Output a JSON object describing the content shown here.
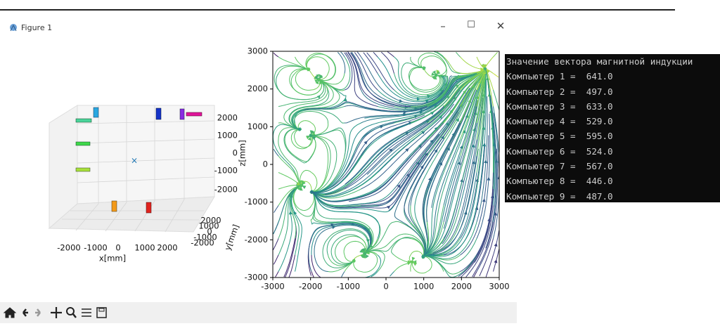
{
  "window": {
    "title": "Figure 1"
  },
  "plot3d": {
    "xticks": [
      -2000,
      -1000,
      0,
      1000,
      2000
    ],
    "xlabel": "x[mm]",
    "yticks": [
      2000,
      1000,
      0,
      -1000,
      -2000
    ],
    "ylabel": "y[mm]",
    "zticks": [
      2000,
      1000,
      0,
      -1000,
      -2000
    ],
    "zlabel": "z[mm]"
  },
  "streamplot": {
    "xticks": [
      -3000,
      -2000,
      -1000,
      0,
      1000,
      2000,
      3000
    ],
    "yticks": [
      3000,
      2000,
      1000,
      0,
      -1000,
      -2000,
      -3000
    ]
  },
  "console": {
    "header": "Значение вектора магнитной индукции",
    "lines": [
      "Компьютер 1 =  641.0",
      "Компьютер 2 =  497.0",
      "Компьютер 3 =  633.0",
      "Компьютер 4 =  529.0",
      "Компьютер 5 =  595.0",
      "Компьютер 6 =  524.0",
      "Компьютер 7 =  567.0",
      "Компьютер 8 =  446.0",
      "Компьютер 9 =  487.0"
    ]
  }
}
